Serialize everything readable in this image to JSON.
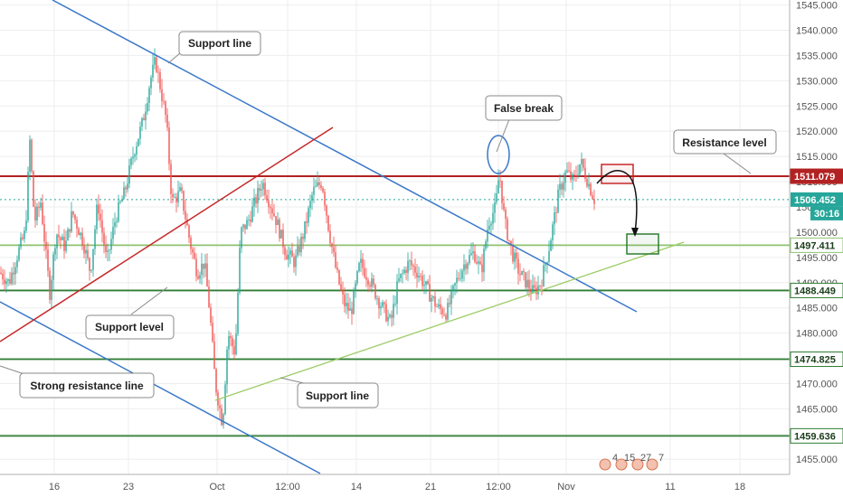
{
  "chart_data": {
    "type": "candlestick",
    "y_axis": {
      "min": 1452,
      "max": 1546,
      "ticks": [
        1455,
        1460,
        1465,
        1470,
        1475,
        1480,
        1485,
        1490,
        1495,
        1500,
        1505,
        1510,
        1515,
        1520,
        1525,
        1530,
        1535,
        1540,
        1545
      ],
      "tick_labels": [
        "1455.000",
        "1460.000",
        "1465.000",
        "1470.000",
        "1475.000",
        "1480.000",
        "1485.000",
        "1490.000",
        "1495.000",
        "1500.000",
        "1505.000",
        "1510.000",
        "1515.000",
        "1520.000",
        "1525.000",
        "1530.000",
        "1535.000",
        "1540.000",
        "1545.000"
      ]
    },
    "x_axis": {
      "ticks": [
        {
          "label": "16"
        },
        {
          "label": "23"
        },
        {
          "label": "Oct"
        },
        {
          "label": "12:00"
        },
        {
          "label": "14"
        },
        {
          "label": "21"
        },
        {
          "label": "12:00"
        },
        {
          "label": "Nov"
        },
        {
          "label": "11"
        },
        {
          "label": "18"
        }
      ]
    },
    "levels": [
      {
        "price": 1511.079,
        "label": "1511.079",
        "color": "#b22222",
        "kind": "resistance"
      },
      {
        "price": 1497.411,
        "label": "1497.411",
        "color": "#8dc26f",
        "kind": "support"
      },
      {
        "price": 1488.449,
        "label": "1488.449",
        "color": "#2e7d32",
        "kind": "support"
      },
      {
        "price": 1474.825,
        "label": "1474.825",
        "color": "#2e7d32",
        "kind": "support"
      },
      {
        "price": 1459.636,
        "label": "1459.636",
        "color": "#2e7d32",
        "kind": "support"
      }
    ],
    "current_price": {
      "label": "1506.452",
      "price": 1506.452,
      "timer": "30:16"
    },
    "annotations": [
      {
        "text": "Support line"
      },
      {
        "text": "False break"
      },
      {
        "text": "Resistance level"
      },
      {
        "text": "Support level"
      },
      {
        "text": "Strong resistance line"
      },
      {
        "text": "Support line"
      }
    ],
    "footer_badge": [
      "4",
      "15",
      "27",
      "7"
    ],
    "colors": {
      "up": "#26a69a",
      "down": "#ef5350",
      "channel": "#3a78c9",
      "red_trend": "#c62828",
      "rising_support": "#9ccc65"
    }
  }
}
